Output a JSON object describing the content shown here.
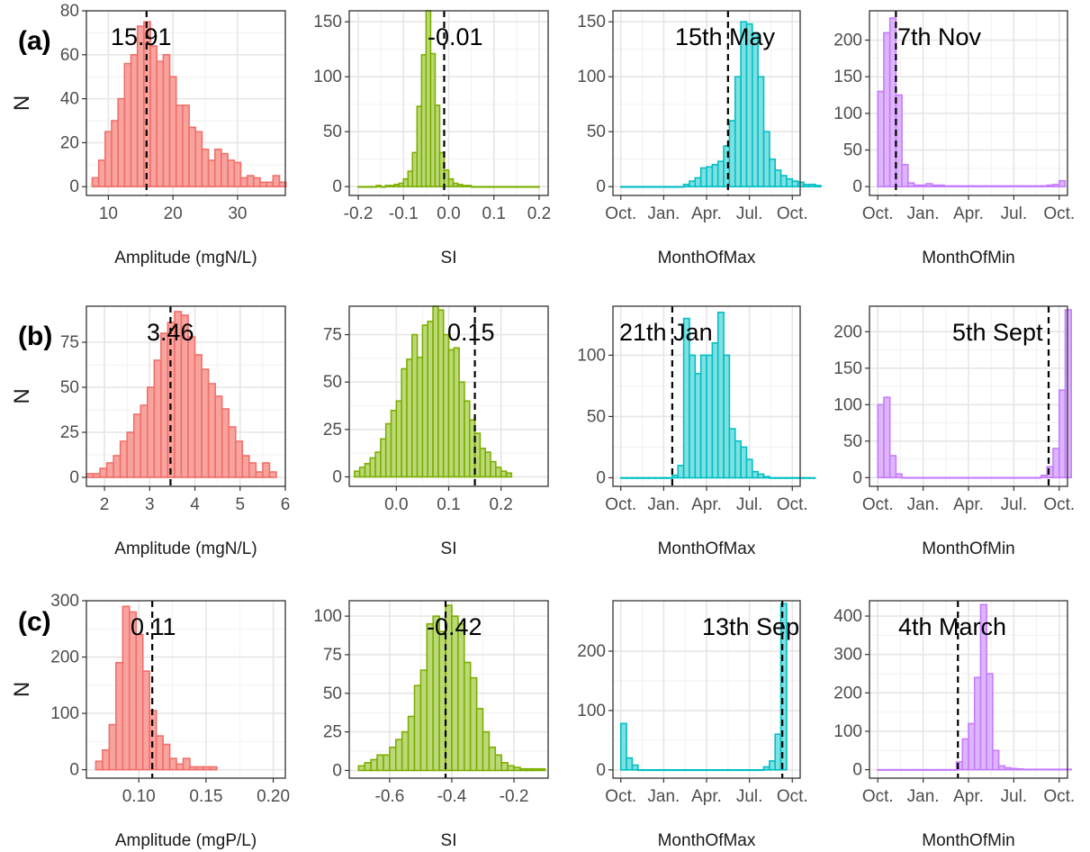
{
  "row_labels": [
    "(a)",
    "(b)",
    "(c)"
  ],
  "y_axis_label": "N",
  "colors": {
    "Amplitude": {
      "fill": "#f8a39e",
      "stroke": "#f0706a"
    },
    "SI": {
      "fill": "#bcd97a",
      "stroke": "#7cae00"
    },
    "MonthOfMax": {
      "fill": "#7fe0e2",
      "stroke": "#00bfc4"
    },
    "MonthOfMin": {
      "fill": "#dcb5fb",
      "stroke": "#c77cff"
    }
  },
  "chart_data": [
    {
      "type": "bar",
      "row": 0,
      "col": 0,
      "var": "Amplitude",
      "xlabel": "Amplitude (mgN/L)",
      "ylabel": "N",
      "xlim": [
        6.6,
        37.4
      ],
      "ylim": [
        -4,
        80
      ],
      "xticks": [
        10,
        20,
        30
      ],
      "xtick_labels": [
        "10",
        "20",
        "30"
      ],
      "yticks": [
        0,
        20,
        40,
        60,
        80
      ],
      "ytick_labels": [
        "0",
        "20",
        "40",
        "60",
        "80"
      ],
      "bin_start": 7.5,
      "bin_width": 1,
      "values": [
        4,
        12,
        25,
        30,
        40,
        56,
        60,
        73,
        75,
        64,
        57,
        60,
        50,
        37,
        37,
        27,
        25,
        17,
        12,
        17,
        15,
        12,
        11,
        4,
        5,
        4,
        2,
        2,
        5,
        2
      ],
      "vline": 15.91,
      "annotation": "15.91"
    },
    {
      "type": "bar",
      "row": 0,
      "col": 1,
      "var": "SI",
      "xlabel": "SI",
      "ylabel": "N",
      "xlim": [
        -0.22,
        0.22
      ],
      "ylim": [
        -8,
        160
      ],
      "xticks": [
        -0.2,
        -0.1,
        0,
        0.1,
        0.2
      ],
      "xtick_labels": [
        "-0.2",
        "-0.1",
        "0.0",
        "0.1",
        "0.2"
      ],
      "yticks": [
        0,
        50,
        100,
        150
      ],
      "ytick_labels": [
        "0",
        "50",
        "100",
        "150"
      ],
      "bin_start": -0.2,
      "bin_width": 0.01,
      "values": [
        0,
        0,
        0,
        0,
        1,
        0,
        1,
        1,
        2,
        3,
        7,
        14,
        31,
        73,
        120,
        160,
        121,
        74,
        31,
        15,
        7,
        3,
        2,
        1,
        1,
        0,
        0,
        0,
        0,
        0,
        0,
        0,
        0,
        0,
        0,
        0,
        0,
        0,
        0,
        0
      ],
      "vline": -0.01,
      "annotation": "-0.01"
    },
    {
      "type": "bar",
      "row": 0,
      "col": 2,
      "var": "MonthOfMax",
      "xlabel": "MonthOfMax",
      "ylabel": "N",
      "xlim": [
        -0.55,
        12.55
      ],
      "ylim": [
        -8,
        160
      ],
      "xticks": [
        0,
        3,
        6,
        9,
        12
      ],
      "xtick_labels": [
        "Oct.",
        "Jan.",
        "Apr.",
        "Jul.",
        "Oct."
      ],
      "yticks": [
        0,
        50,
        100,
        150
      ],
      "ytick_labels": [
        "0",
        "50",
        "100",
        "150"
      ],
      "bin_start": 0,
      "bin_width": 0.4,
      "values": [
        0,
        0,
        0,
        0,
        0,
        0,
        0,
        0,
        0,
        0,
        0,
        2,
        5,
        8,
        17,
        18,
        20,
        23,
        37,
        60,
        100,
        150,
        148,
        140,
        100,
        50,
        25,
        15,
        10,
        7,
        5,
        4,
        2,
        2,
        1
      ],
      "vline": 7.5,
      "annotation": "15th May"
    },
    {
      "type": "bar",
      "row": 0,
      "col": 3,
      "var": "MonthOfMin",
      "xlabel": "MonthOfMin",
      "ylabel": "N",
      "xlim": [
        -0.55,
        12.55
      ],
      "ylim": [
        -12,
        240
      ],
      "xticks": [
        0,
        3,
        6,
        9,
        12
      ],
      "xtick_labels": [
        "Oct.",
        "Jan.",
        "Apr.",
        "Jul.",
        "Oct."
      ],
      "yticks": [
        0,
        50,
        100,
        150,
        200
      ],
      "ytick_labels": [
        "0",
        "50",
        "100",
        "150",
        "200"
      ],
      "bin_start": 0,
      "bin_width": 0.4,
      "values": [
        130,
        210,
        230,
        125,
        30,
        5,
        2,
        2,
        4,
        2,
        2,
        1,
        1,
        1,
        1,
        1,
        1,
        1,
        1,
        1,
        1,
        1,
        1,
        1,
        1,
        1,
        1,
        1,
        2,
        3,
        8
      ],
      "vline": 1.2,
      "annotation": "7th Nov"
    },
    {
      "type": "bar",
      "row": 1,
      "col": 0,
      "var": "Amplitude",
      "xlabel": "Amplitude (mgN/L)",
      "ylabel": "N",
      "xlim": [
        1.6,
        6.0
      ],
      "ylim": [
        -5,
        95
      ],
      "xticks": [
        2,
        3,
        4,
        5,
        6
      ],
      "xtick_labels": [
        "2",
        "3",
        "4",
        "5",
        "6"
      ],
      "yticks": [
        0,
        25,
        50,
        75
      ],
      "ytick_labels": [
        "0",
        "25",
        "50",
        "75"
      ],
      "bin_start": 1.6,
      "bin_width": 0.15,
      "values": [
        2,
        2,
        5,
        8,
        12,
        20,
        25,
        35,
        40,
        50,
        65,
        80,
        86,
        92,
        90,
        78,
        68,
        60,
        52,
        45,
        38,
        28,
        20,
        12,
        8,
        3,
        8,
        3
      ],
      "vline": 3.46,
      "annotation": "3.46"
    },
    {
      "type": "bar",
      "row": 1,
      "col": 1,
      "var": "SI",
      "xlabel": "SI",
      "ylabel": "N",
      "xlim": [
        -0.09,
        0.29
      ],
      "ylim": [
        -5,
        90
      ],
      "xticks": [
        0,
        0.1,
        0.2
      ],
      "xtick_labels": [
        "0.0",
        "0.1",
        "0.2"
      ],
      "yticks": [
        0,
        25,
        50,
        75
      ],
      "ytick_labels": [
        "0",
        "25",
        "50",
        "75"
      ],
      "bin_start": -0.08,
      "bin_width": 0.01,
      "values": [
        3,
        5,
        7,
        10,
        13,
        20,
        28,
        35,
        40,
        57,
        62,
        75,
        63,
        80,
        82,
        90,
        88,
        75,
        67,
        68,
        50,
        40,
        30,
        23,
        15,
        13,
        8,
        5,
        3,
        2
      ],
      "vline": 0.15,
      "annotation": "0.15"
    },
    {
      "type": "bar",
      "row": 1,
      "col": 2,
      "var": "MonthOfMax",
      "xlabel": "MonthOfMax",
      "ylabel": "N",
      "xlim": [
        -0.55,
        12.55
      ],
      "ylim": [
        -7,
        140
      ],
      "xticks": [
        0,
        3,
        6,
        9,
        12
      ],
      "xtick_labels": [
        "Oct.",
        "Jan.",
        "Apr.",
        "Jul.",
        "Oct."
      ],
      "yticks": [
        0,
        50,
        100
      ],
      "ytick_labels": [
        "0",
        "50",
        "100"
      ],
      "bin_start": 0,
      "bin_width": 0.4,
      "values": [
        0,
        0,
        0,
        0,
        0,
        0,
        0,
        0,
        0,
        2,
        10,
        130,
        100,
        85,
        100,
        100,
        110,
        135,
        100,
        40,
        30,
        25,
        15,
        5,
        3,
        1,
        0,
        0,
        0,
        0,
        0,
        0,
        0,
        0
      ],
      "vline": 3.6,
      "annotation": "21th Jan"
    },
    {
      "type": "bar",
      "row": 1,
      "col": 3,
      "var": "MonthOfMin",
      "xlabel": "MonthOfMin",
      "ylabel": "N",
      "xlim": [
        -0.55,
        12.55
      ],
      "ylim": [
        -12,
        235
      ],
      "xticks": [
        0,
        3,
        6,
        9,
        12
      ],
      "xtick_labels": [
        "Oct.",
        "Jan.",
        "Apr.",
        "Jul.",
        "Oct."
      ],
      "yticks": [
        0,
        50,
        100,
        150,
        200
      ],
      "ytick_labels": [
        "0",
        "50",
        "100",
        "150",
        "200"
      ],
      "bin_start": 0,
      "bin_width": 0.4,
      "values": [
        100,
        110,
        30,
        5,
        0,
        0,
        0,
        0,
        0,
        0,
        0,
        0,
        0,
        0,
        0,
        0,
        0,
        0,
        0,
        0,
        0,
        0,
        0,
        0,
        0,
        0,
        0,
        3,
        15,
        40,
        120,
        230
      ],
      "vline": 11.3,
      "annotation": "5th Sept"
    },
    {
      "type": "bar",
      "row": 2,
      "col": 0,
      "var": "Amplitude",
      "xlabel": "Amplitude (mgP/L)",
      "ylabel": "N",
      "xlim": [
        0.061,
        0.209
      ],
      "ylim": [
        -15,
        300
      ],
      "xticks": [
        0.1,
        0.15,
        0.2
      ],
      "xtick_labels": [
        "0.10",
        "0.15",
        "0.20"
      ],
      "yticks": [
        0,
        100,
        200,
        300
      ],
      "ytick_labels": [
        "0",
        "100",
        "200",
        "300"
      ],
      "bin_start": 0.068,
      "bin_width": 0.005,
      "values": [
        15,
        35,
        80,
        190,
        290,
        280,
        240,
        175,
        105,
        60,
        45,
        20,
        10,
        20,
        5,
        5,
        5,
        5
      ],
      "vline": 0.11,
      "annotation": "0.11"
    },
    {
      "type": "bar",
      "row": 2,
      "col": 1,
      "var": "SI",
      "xlabel": "SI",
      "ylabel": "N",
      "xlim": [
        -0.73,
        -0.09
      ],
      "ylim": [
        -5,
        110
      ],
      "xticks": [
        -0.6,
        -0.4,
        -0.2
      ],
      "xtick_labels": [
        "-0.6",
        "-0.4",
        "-0.2"
      ],
      "yticks": [
        0,
        25,
        50,
        75,
        100
      ],
      "ytick_labels": [
        "0",
        "25",
        "50",
        "75",
        "100"
      ],
      "bin_start": -0.7,
      "bin_width": 0.02,
      "values": [
        3,
        5,
        7,
        10,
        10,
        15,
        20,
        25,
        35,
        55,
        65,
        95,
        100,
        90,
        107,
        100,
        95,
        70,
        60,
        40,
        25,
        15,
        10,
        5,
        3,
        2,
        1,
        1,
        1,
        1
      ],
      "vline": -0.42,
      "annotation": "-0.42"
    },
    {
      "type": "bar",
      "row": 2,
      "col": 2,
      "var": "MonthOfMax",
      "xlabel": "MonthOfMax",
      "ylabel": "N",
      "xlim": [
        -0.55,
        12.55
      ],
      "ylim": [
        -14,
        285
      ],
      "xticks": [
        0,
        3,
        6,
        9,
        12
      ],
      "xtick_labels": [
        "Oct.",
        "Jan.",
        "Apr.",
        "Jul.",
        "Oct."
      ],
      "yticks": [
        0,
        100,
        200
      ],
      "ytick_labels": [
        "0",
        "100",
        "200"
      ],
      "bin_start": 0,
      "bin_width": 0.4,
      "values": [
        78,
        20,
        8,
        0,
        0,
        0,
        0,
        0,
        0,
        0,
        0,
        0,
        0,
        0,
        0,
        0,
        0,
        0,
        0,
        0,
        0,
        0,
        0,
        0,
        0,
        5,
        15,
        60,
        280
      ],
      "vline": 11.3,
      "annotation": "13th Sep"
    },
    {
      "type": "bar",
      "row": 2,
      "col": 3,
      "var": "MonthOfMin",
      "xlabel": "MonthOfMin",
      "ylabel": "N",
      "xlim": [
        -0.55,
        12.55
      ],
      "ylim": [
        -22,
        440
      ],
      "xticks": [
        0,
        3,
        6,
        9,
        12
      ],
      "xtick_labels": [
        "Oct.",
        "Jan.",
        "Apr.",
        "Jul.",
        "Oct."
      ],
      "yticks": [
        0,
        100,
        200,
        300,
        400
      ],
      "ytick_labels": [
        "0",
        "100",
        "200",
        "300",
        "400"
      ],
      "bin_start": 0,
      "bin_width": 0.4,
      "values": [
        0,
        0,
        0,
        0,
        0,
        0,
        0,
        0,
        0,
        0,
        0,
        0,
        0,
        20,
        80,
        120,
        240,
        430,
        250,
        50,
        10,
        5,
        3,
        2,
        1,
        1,
        1,
        1,
        1,
        1,
        1,
        1
      ],
      "vline": 5.3,
      "annotation": "4th March"
    }
  ]
}
